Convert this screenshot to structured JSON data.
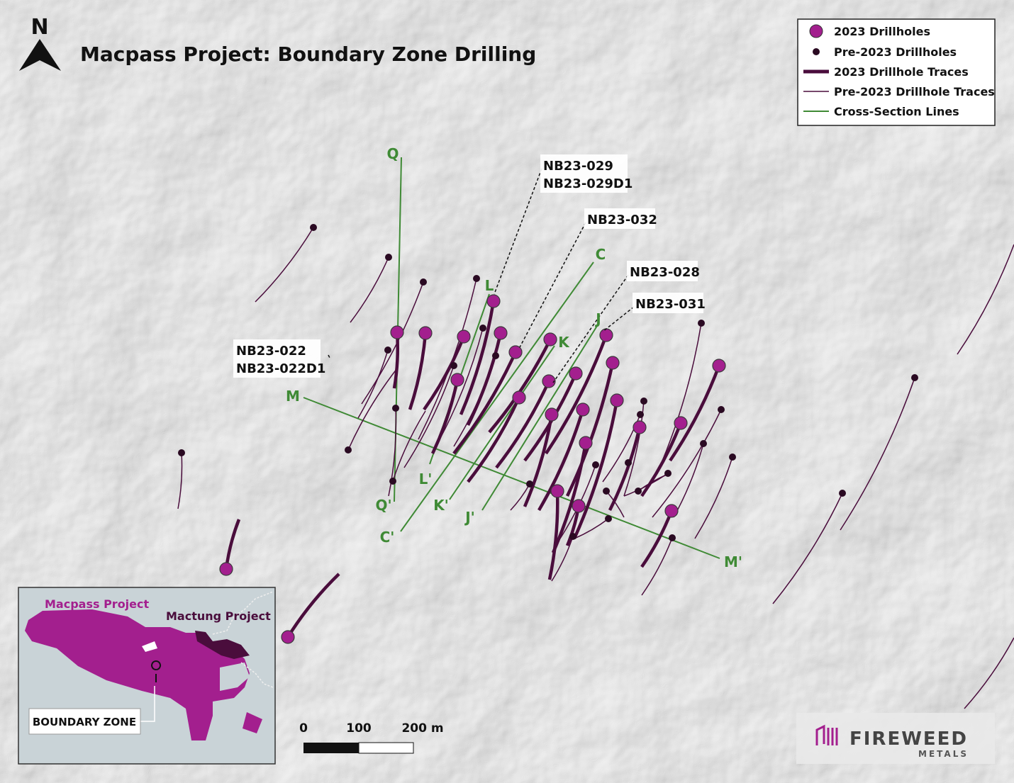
{
  "title": "Macpass Project: Boundary Zone Drilling",
  "north_arrow": "N",
  "legend": [
    "2023 Drillholes",
    "Pre-2023 Drillholes",
    "2023 Drillhole Traces",
    "Pre-2023 Drillhole Traces",
    "Cross-Section Lines"
  ],
  "section_labels": [
    "Q",
    "Q'",
    "C",
    "C'",
    "L",
    "L'",
    "K",
    "K'",
    "J",
    "J'",
    "M",
    "M'"
  ],
  "hole_labels": [
    [
      "NB23-029",
      "NB23-029D1"
    ],
    [
      "NB23-032"
    ],
    [
      "NB23-028"
    ],
    [
      "NB23-031"
    ],
    [
      "NB23-022",
      "NB23-022D1"
    ]
  ],
  "scale_bar": [
    "0",
    "100",
    "200 m"
  ],
  "inset": {
    "labels": [
      "Macpass Project",
      "Mactung Project",
      "BOUNDARY ZONE"
    ]
  },
  "logo": {
    "name": "FIREWEED",
    "sub": "METALS"
  }
}
